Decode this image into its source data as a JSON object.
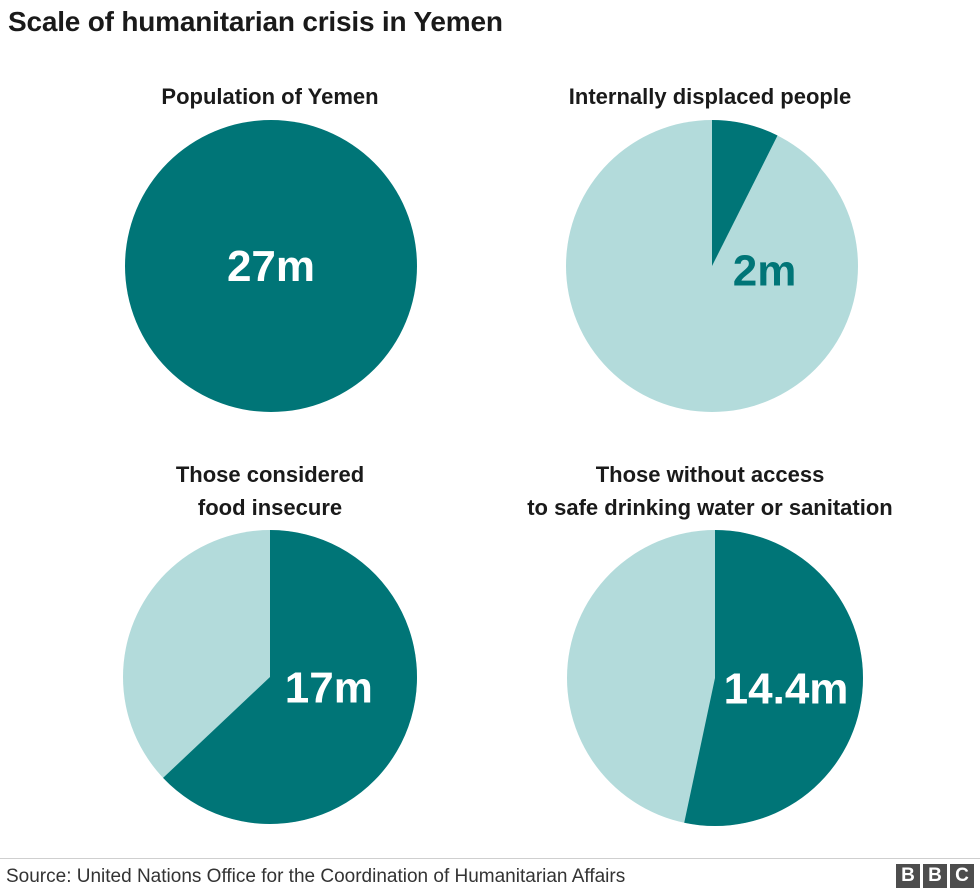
{
  "title": "Scale of humanitarian crisis in Yemen",
  "source": "Source: United Nations Office for the Coordination of Humanitarian Affairs",
  "logo_letters": [
    "B",
    "B",
    "C"
  ],
  "colors": {
    "dark": "#007577",
    "light": "#b3dbdb",
    "text_dark": "#007577",
    "text_light": "#ffffff"
  },
  "chart_data": [
    {
      "type": "pie",
      "title_lines": [
        "Population of Yemen"
      ],
      "label": "27m",
      "value": 27,
      "total": 27,
      "label_color": "light"
    },
    {
      "type": "pie",
      "title_lines": [
        "Internally displaced people"
      ],
      "label": "2m",
      "value": 2,
      "total": 27,
      "label_color": "dark"
    },
    {
      "type": "pie",
      "title_lines": [
        "Those considered",
        "food insecure"
      ],
      "label": "17m",
      "value": 17,
      "total": 27,
      "label_color": "light"
    },
    {
      "type": "pie",
      "title_lines": [
        "Those without access",
        "to safe drinking water or sanitation"
      ],
      "label": "14.4m",
      "value": 14.4,
      "total": 27,
      "label_color": "light"
    }
  ]
}
